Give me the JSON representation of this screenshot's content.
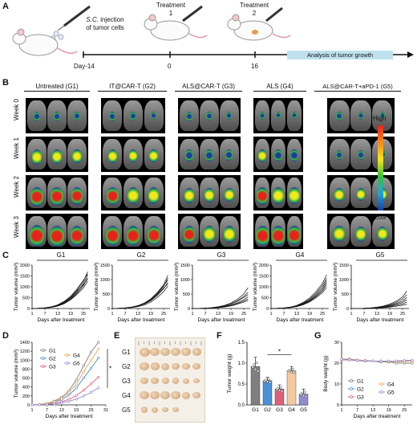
{
  "panels": {
    "A": "A",
    "B": "B",
    "C": "C",
    "D": "D",
    "E": "E",
    "F": "F",
    "G": "G"
  },
  "schematic": {
    "injection_label_line1": "S.C.",
    "injection_label_line1_rest": " injection",
    "injection_label_line2": "of tumor cells",
    "treatment1_line1": "Treatment",
    "treatment1_line2": "1",
    "treatment2_line1": "Treatment",
    "treatment2_line2": "2",
    "timeline_ticks": [
      "Day-14",
      "0",
      "16"
    ],
    "analysis_label": "Analysis of tumor growth"
  },
  "imaging": {
    "groups": [
      "Untreated (G1)",
      "IT@CAR-T (G2)",
      "ALS@CAR-T (G3)",
      "ALS (G4)",
      "ALS@CAR-T+aPD-1 (G5)"
    ],
    "weeks": [
      "Week 0",
      "Week 1",
      "Week 2",
      "Week 3"
    ],
    "scale_high": "High",
    "scale_low": "Low",
    "signal_levels": [
      [
        0.25,
        0.2,
        0.2,
        0.1,
        0.15
      ],
      [
        0.55,
        0.45,
        0.35,
        0.4,
        0.25
      ],
      [
        0.8,
        0.7,
        0.55,
        0.7,
        0.45
      ],
      [
        0.95,
        0.9,
        0.7,
        0.9,
        0.6
      ]
    ],
    "colors": {
      "high": "#e8221b",
      "mid": "#f5e61a",
      "low": "#1b3f9e"
    }
  },
  "chart_data": [
    {
      "type": "line",
      "panel": "C",
      "title": "G1",
      "xlabel": "Days after treatment",
      "ylabel": "Tumor volume (mm³)",
      "x_ticks": [
        1,
        7,
        13,
        19,
        25
      ],
      "y_ticks": [
        0,
        500,
        1000,
        1500,
        2000
      ],
      "ylim": [
        0,
        2000
      ],
      "xlim": [
        1,
        28
      ],
      "x": [
        1,
        4,
        7,
        10,
        13,
        16,
        19,
        22,
        25,
        27
      ],
      "series": [
        {
          "values": [
            0,
            10,
            30,
            70,
            150,
            300,
            520,
            850,
            1250,
            1700
          ]
        },
        {
          "values": [
            0,
            10,
            25,
            60,
            130,
            260,
            460,
            760,
            1150,
            1550
          ]
        },
        {
          "values": [
            0,
            8,
            22,
            55,
            120,
            240,
            420,
            700,
            1050,
            1420
          ]
        },
        {
          "values": [
            0,
            12,
            35,
            80,
            170,
            330,
            560,
            900,
            1300,
            1600
          ]
        },
        {
          "values": [
            0,
            9,
            28,
            65,
            140,
            280,
            480,
            800,
            1100,
            1350
          ]
        },
        {
          "values": [
            0,
            7,
            20,
            50,
            110,
            220,
            400,
            650,
            950,
            1250
          ]
        }
      ]
    },
    {
      "type": "line",
      "panel": "C",
      "title": "G2",
      "xlabel": "Days after treatment",
      "ylabel": "Tumor volume (mm³)",
      "x_ticks": [
        1,
        7,
        13,
        19,
        25
      ],
      "y_ticks": [
        0,
        500,
        1000,
        1500
      ],
      "ylim": [
        0,
        1500
      ],
      "xlim": [
        1,
        28
      ],
      "x": [
        1,
        4,
        7,
        10,
        13,
        16,
        19,
        22,
        25,
        27
      ],
      "series": [
        {
          "values": [
            0,
            8,
            22,
            50,
            100,
            190,
            330,
            550,
            820,
            1150
          ]
        },
        {
          "values": [
            0,
            6,
            18,
            42,
            90,
            170,
            300,
            500,
            760,
            1050
          ]
        },
        {
          "values": [
            0,
            7,
            20,
            46,
            95,
            180,
            310,
            520,
            780,
            980
          ]
        },
        {
          "values": [
            0,
            5,
            15,
            38,
            80,
            150,
            270,
            450,
            680,
            900
          ]
        },
        {
          "values": [
            0,
            6,
            16,
            40,
            85,
            160,
            280,
            470,
            700,
            850
          ]
        },
        {
          "values": [
            0,
            4,
            12,
            30,
            65,
            120,
            220,
            380,
            580,
            780
          ]
        }
      ]
    },
    {
      "type": "line",
      "panel": "C",
      "title": "G3",
      "xlabel": "Days after treatment",
      "ylabel": "Tumor volume (mm³)",
      "x_ticks": [
        1,
        7,
        13,
        19,
        25
      ],
      "y_ticks": [
        0,
        500,
        1000,
        1500
      ],
      "ylim": [
        0,
        1500
      ],
      "xlim": [
        1,
        28
      ],
      "x": [
        1,
        4,
        7,
        10,
        13,
        16,
        19,
        22,
        25,
        27
      ],
      "series": [
        {
          "values": [
            0,
            4,
            12,
            30,
            60,
            110,
            190,
            320,
            500,
            720
          ]
        },
        {
          "values": [
            0,
            3,
            10,
            24,
            50,
            95,
            160,
            270,
            420,
            560
          ]
        },
        {
          "values": [
            0,
            3,
            9,
            22,
            45,
            85,
            150,
            250,
            380,
            480
          ]
        },
        {
          "values": [
            0,
            2,
            8,
            18,
            38,
            70,
            120,
            200,
            300,
            400
          ]
        },
        {
          "values": [
            0,
            2,
            7,
            16,
            34,
            62,
            105,
            170,
            260,
            330
          ]
        },
        {
          "values": [
            0,
            2,
            6,
            14,
            28,
            52,
            90,
            150,
            220,
            280
          ]
        }
      ]
    },
    {
      "type": "line",
      "panel": "C",
      "title": "G4",
      "xlabel": "Days after treatment",
      "ylabel": "Tumor volume (mm³)",
      "x_ticks": [
        1,
        7,
        13,
        19,
        25
      ],
      "y_ticks": [
        0,
        500,
        1000,
        1500,
        2000
      ],
      "ylim": [
        0,
        2000
      ],
      "xlim": [
        1,
        28
      ],
      "x": [
        1,
        4,
        7,
        10,
        13,
        16,
        19,
        22,
        25,
        27
      ],
      "series": [
        {
          "values": [
            0,
            10,
            28,
            65,
            140,
            280,
            480,
            780,
            1150,
            1550
          ]
        },
        {
          "values": [
            0,
            9,
            25,
            58,
            125,
            250,
            430,
            700,
            1050,
            1400
          ]
        },
        {
          "values": [
            0,
            8,
            22,
            52,
            112,
            225,
            390,
            640,
            950,
            1300
          ]
        },
        {
          "values": [
            0,
            7,
            20,
            48,
            102,
            205,
            355,
            580,
            870,
            1200
          ]
        },
        {
          "values": [
            0,
            7,
            18,
            44,
            95,
            190,
            330,
            540,
            800,
            1100
          ]
        },
        {
          "values": [
            0,
            6,
            16,
            40,
            85,
            170,
            300,
            490,
            720,
            980
          ]
        }
      ]
    },
    {
      "type": "line",
      "panel": "C",
      "title": "G5",
      "xlabel": "Days after treatment",
      "ylabel": "Tumor volume (mm³)",
      "x_ticks": [
        1,
        7,
        13,
        19,
        25
      ],
      "y_ticks": [
        0,
        500,
        1000,
        1500
      ],
      "ylim": [
        0,
        1500
      ],
      "xlim": [
        1,
        28
      ],
      "x": [
        1,
        4,
        7,
        10,
        13,
        16,
        19,
        22,
        25,
        27
      ],
      "series": [
        {
          "values": [
            0,
            3,
            9,
            22,
            45,
            85,
            150,
            250,
            400,
            600
          ]
        },
        {
          "values": [
            0,
            3,
            8,
            18,
            38,
            72,
            125,
            210,
            330,
            480
          ]
        },
        {
          "values": [
            0,
            2,
            6,
            14,
            30,
            58,
            100,
            170,
            260,
            380
          ]
        },
        {
          "values": [
            0,
            2,
            5,
            12,
            25,
            48,
            82,
            140,
            210,
            300
          ]
        },
        {
          "values": [
            0,
            1,
            4,
            10,
            20,
            38,
            65,
            110,
            160,
            220
          ]
        },
        {
          "values": [
            0,
            1,
            3,
            8,
            15,
            28,
            48,
            80,
            115,
            150
          ]
        }
      ]
    },
    {
      "type": "line",
      "panel": "D",
      "xlabel": "Days after treatment",
      "ylabel": "Tumor volume (mm³)",
      "x_ticks": [
        1,
        7,
        13,
        19,
        25,
        31
      ],
      "y_ticks": [
        0,
        200,
        400,
        600,
        800,
        1000,
        1200,
        1400
      ],
      "ylim": [
        0,
        1400
      ],
      "xlim": [
        1,
        31
      ],
      "x": [
        1,
        4,
        7,
        10,
        13,
        16,
        19,
        22,
        25,
        28
      ],
      "series": [
        {
          "name": "G1",
          "color": "#7f7f7f",
          "values": [
            0,
            12,
            35,
            85,
            170,
            320,
            560,
            880,
            1180,
            1400
          ]
        },
        {
          "name": "G2",
          "color": "#4a90d9",
          "values": [
            0,
            9,
            25,
            60,
            120,
            220,
            380,
            600,
            820,
            1050
          ]
        },
        {
          "name": "G3",
          "color": "#e0607a",
          "values": [
            0,
            6,
            15,
            35,
            70,
            125,
            210,
            330,
            470,
            620
          ]
        },
        {
          "name": "G4",
          "color": "#f0a855",
          "values": [
            0,
            11,
            30,
            72,
            145,
            275,
            470,
            740,
            1000,
            1250
          ]
        },
        {
          "name": "G5",
          "color": "#8e8bd0",
          "values": [
            0,
            4,
            10,
            22,
            45,
            80,
            130,
            200,
            280,
            380
          ]
        }
      ],
      "significance": "*"
    },
    {
      "type": "bar",
      "panel": "F",
      "categories": [
        "G1",
        "G2",
        "G3",
        "G4",
        "G5"
      ],
      "values": [
        0.92,
        0.58,
        0.38,
        0.82,
        0.26
      ],
      "errors": [
        0.22,
        0.08,
        0.1,
        0.1,
        0.12
      ],
      "colors": [
        "#7f7f7f",
        "#4a90d9",
        "#e0607a",
        "#f5c9a0",
        "#8e8bd0"
      ],
      "ylabel": "Tumor weight (g)",
      "ylim": [
        0,
        1.5
      ],
      "y_ticks": [
        0.0,
        0.5,
        1.0,
        1.5
      ],
      "significance": "*"
    },
    {
      "type": "line",
      "panel": "G",
      "xlabel": "Days after treatment",
      "ylabel": "Body weight (g)",
      "x_ticks": [
        1,
        7,
        13,
        19,
        25
      ],
      "y_ticks": [
        0,
        10,
        20,
        30
      ],
      "ylim": [
        0,
        30
      ],
      "xlim": [
        1,
        28
      ],
      "x": [
        1,
        4,
        7,
        10,
        13,
        16,
        19,
        22,
        25,
        28
      ],
      "series": [
        {
          "name": "G1",
          "color": "#7f7f7f",
          "values": [
            22,
            22,
            21.5,
            21,
            21,
            20.5,
            20.5,
            20,
            20,
            20
          ]
        },
        {
          "name": "G2",
          "color": "#4a90d9",
          "values": [
            22,
            21.8,
            21.5,
            21.2,
            21,
            21,
            20.8,
            20.8,
            21,
            21
          ]
        },
        {
          "name": "G3",
          "color": "#e0607a",
          "values": [
            21.5,
            21.5,
            21.2,
            21,
            21,
            21,
            21,
            21,
            21.2,
            21.2
          ]
        },
        {
          "name": "G4",
          "color": "#f0a855",
          "values": [
            22,
            21.8,
            21.5,
            21.3,
            21,
            21,
            20.8,
            20.6,
            20.8,
            21
          ]
        },
        {
          "name": "G5",
          "color": "#8e8bd0",
          "values": [
            21.8,
            21.6,
            21.3,
            21.2,
            21,
            21,
            21,
            21,
            21.2,
            21.4
          ]
        }
      ]
    }
  ],
  "panel_E": {
    "row_labels": [
      "G1",
      "G2",
      "G3",
      "G4",
      "G5"
    ],
    "tumor_sizes": [
      [
        1.0,
        0.95,
        0.9,
        0.85,
        0.8,
        0.75
      ],
      [
        0.8,
        0.75,
        0.7,
        0.65,
        0.6,
        0.55
      ],
      [
        0.6,
        0.55,
        0.5,
        0.45,
        0.4,
        0.35
      ],
      [
        0.95,
        0.9,
        0.85,
        0.8,
        0.7,
        0.6
      ],
      [
        0.45,
        0.4,
        0.35,
        0.3
      ]
    ]
  }
}
